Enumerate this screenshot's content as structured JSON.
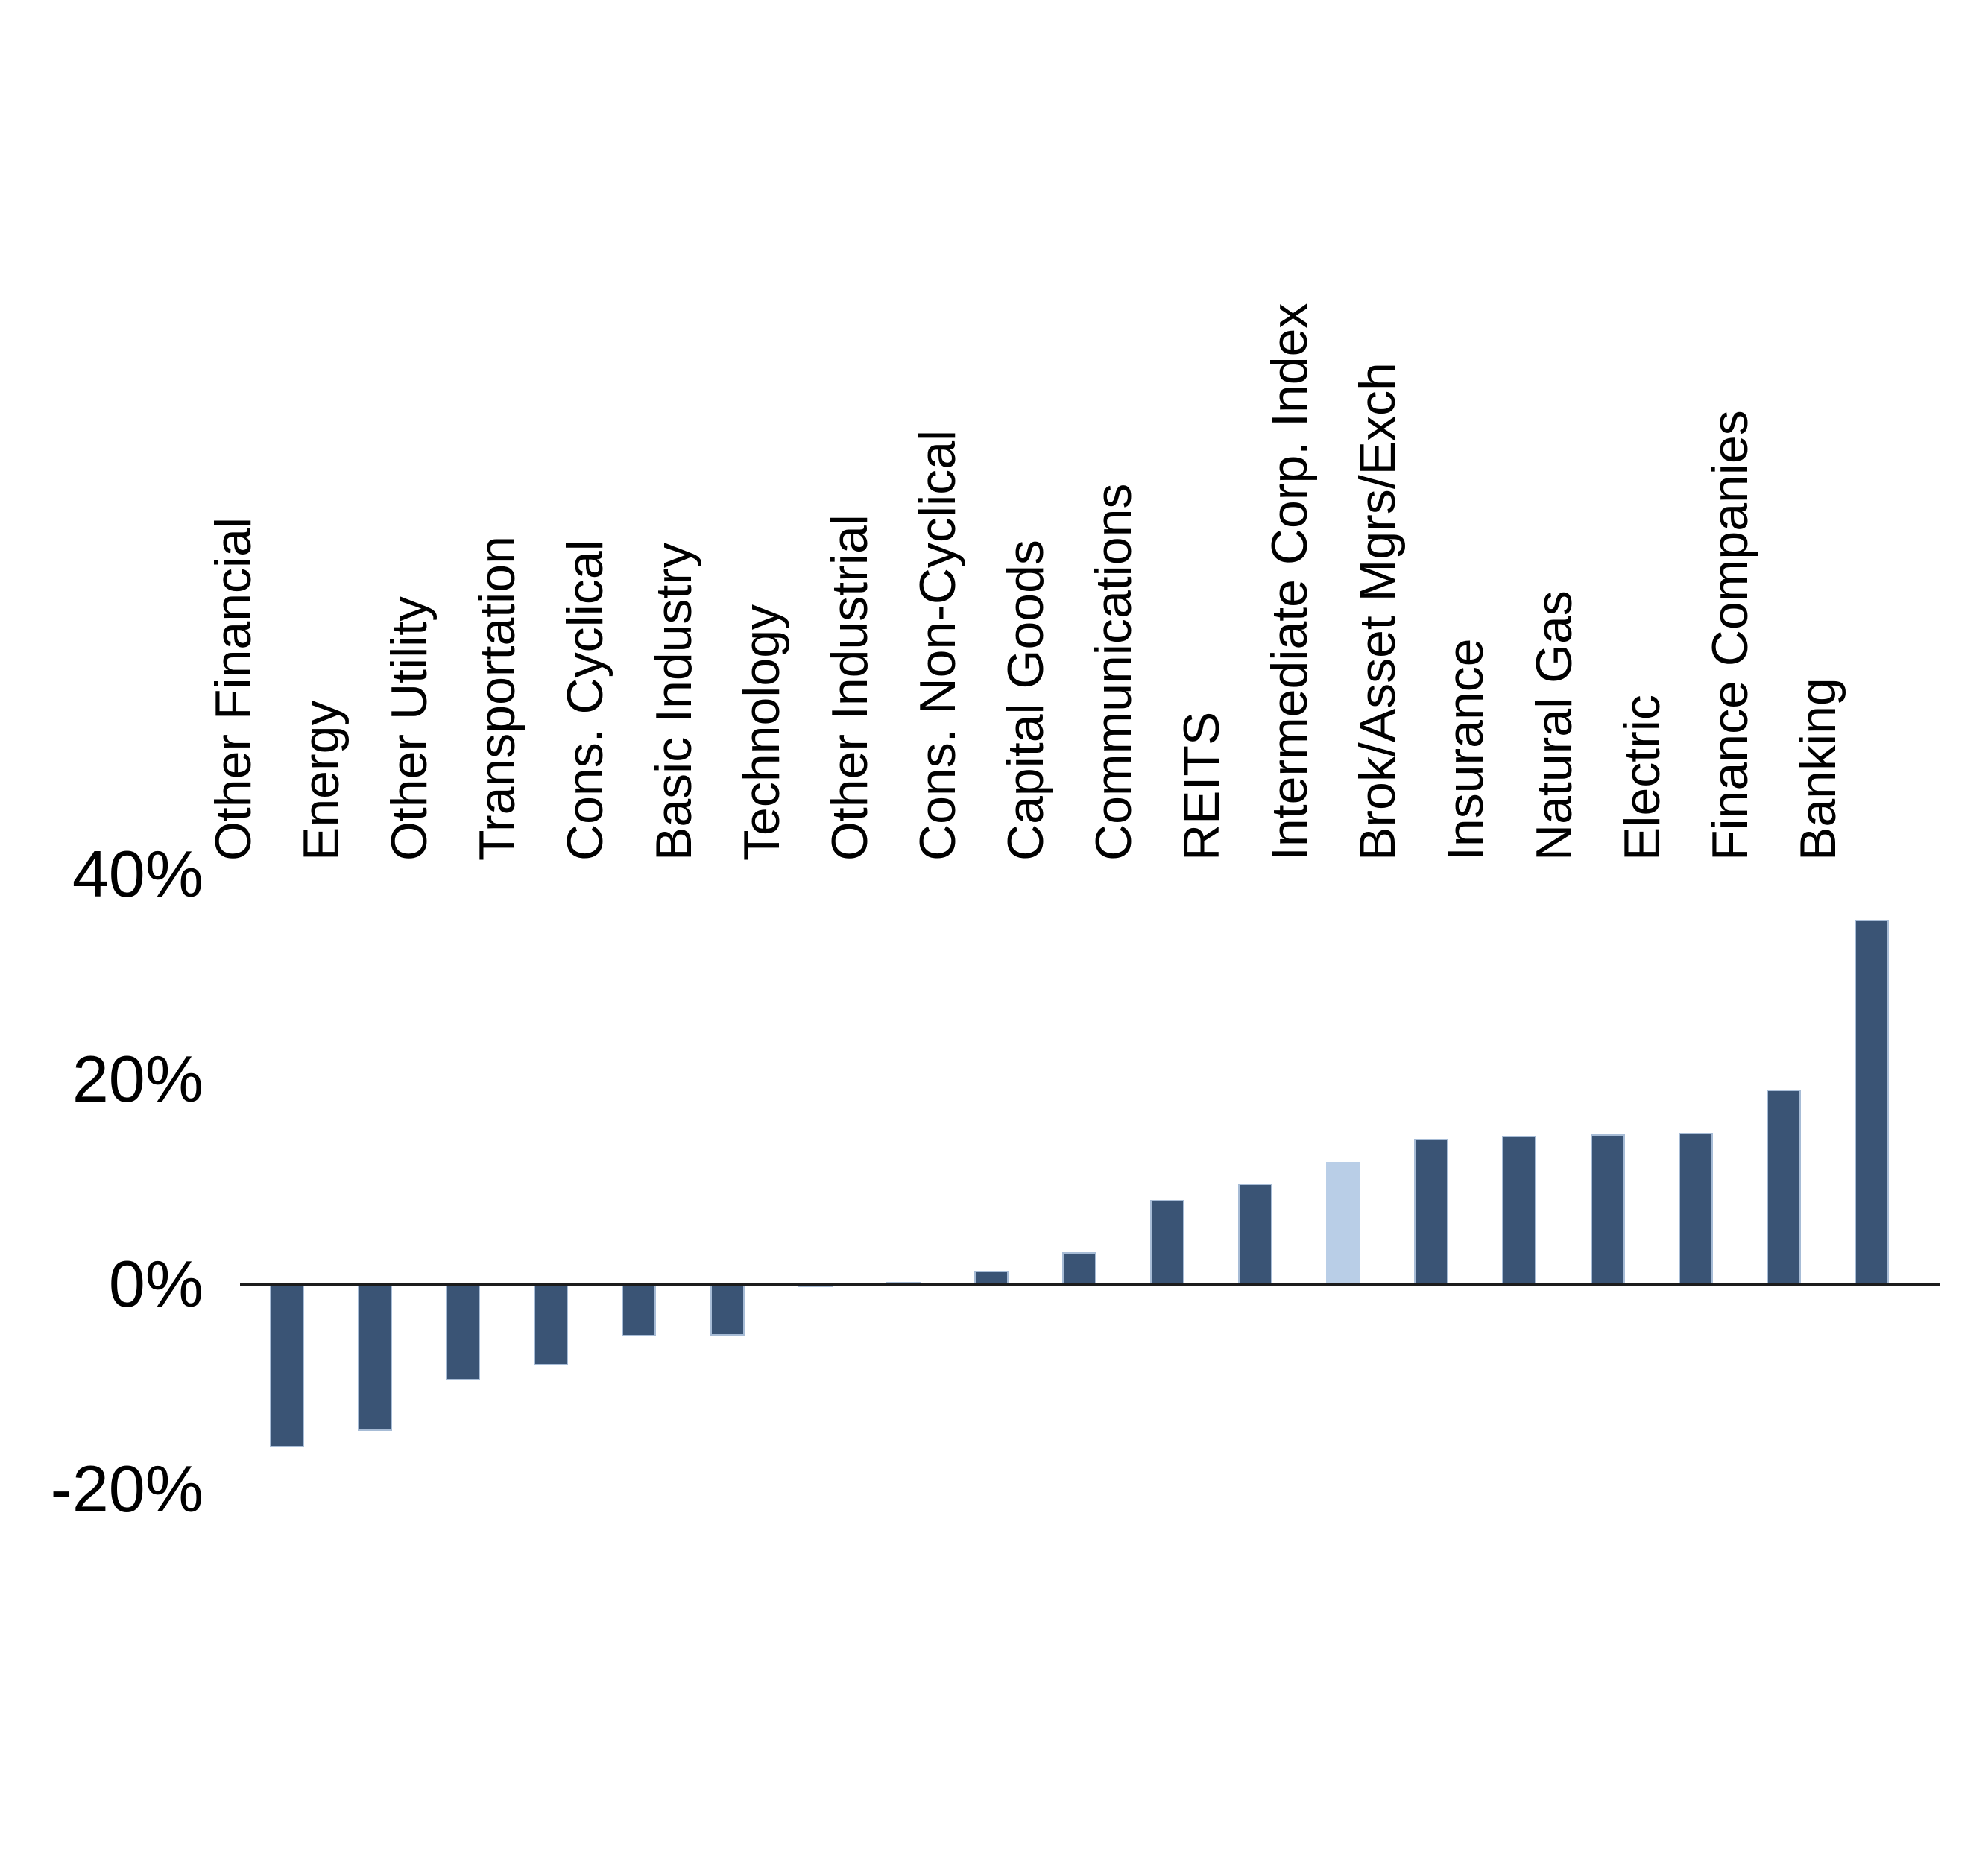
{
  "chart_data": {
    "type": "bar",
    "title": "",
    "categories": [
      "Other Financial",
      "Energy",
      "Other Utility",
      "Transportation",
      "Cons. Cyclical",
      "Basic Industry",
      "Technology",
      "Other Industrial",
      "Cons. Non-Cyclical",
      "Capital Goods",
      "Communications",
      "REITS",
      "Intermediate Corp. Index",
      "Brok/Asset Mgrs/Exch",
      "Insurance",
      "Natural Gas",
      "Electric",
      "Finance Companies",
      "Banking"
    ],
    "values": [
      -15.9,
      -14.3,
      -9.4,
      -7.9,
      -5.1,
      -5.0,
      -0.3,
      0.2,
      1.3,
      3.1,
      8.2,
      9.8,
      11.9,
      14.2,
      14.5,
      14.6,
      14.8,
      19.0,
      35.6
    ],
    "unit": "%",
    "highlight_category": "Intermediate Corp. Index",
    "highlight_index": 12,
    "y_tick_labels": [
      "40%",
      "20%",
      "0%",
      "-20%"
    ],
    "y_tick_values": [
      40,
      20,
      0,
      -20
    ],
    "ylim": [
      -20,
      40
    ],
    "xlabel": "",
    "ylabel": "",
    "grid": "none",
    "legend": "none",
    "colors": {
      "bar": "#3A5475",
      "highlight_bar": "#B9CEE7",
      "bar_edge": "#A7BCD6",
      "axis_line": "#1C1C1C",
      "text": "#000000",
      "background": "#FFFFFF"
    }
  }
}
